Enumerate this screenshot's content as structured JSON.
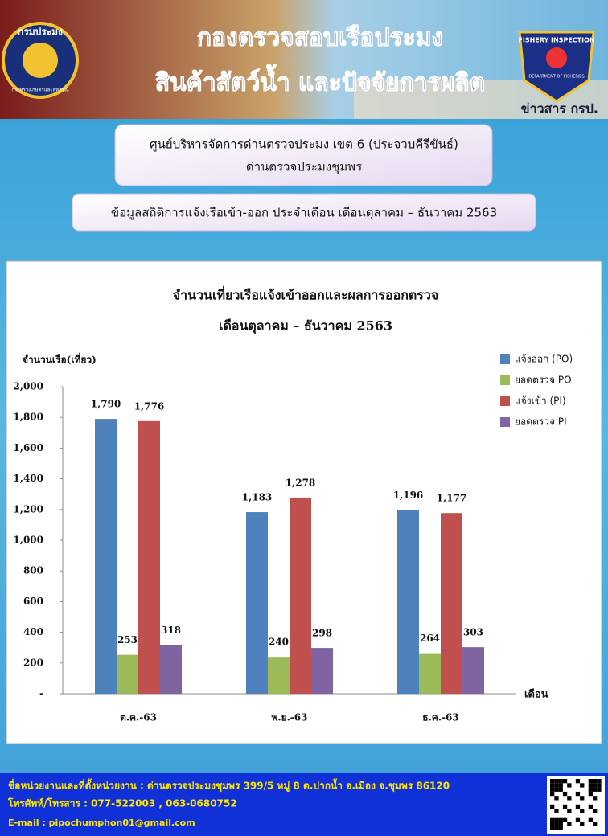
{
  "header": {
    "title_line1": "กองตรวจสอบเรือประมง",
    "title_line2": "สินค้าสัตว์น้ำ และปัจจัยการผลิต",
    "tag": "ข่าวสาร กรป.",
    "logo_left_top": "กรมประมง",
    "logo_left_bottom": "กระทรวงเกษตรและสหกรณ์",
    "logo_right_top": "FISHERY INSPECTION",
    "logo_right_bottom": "DEPARTMENT OF FISHERIES"
  },
  "banner": {
    "line1": "ศูนย์บริหารจัดการด่านตรวจประมง เขต 6 (ประจวบคีรีขันธ์)",
    "line2": "ด่านตรวจประมงชุมพร",
    "subtitle": "ข้อมูลสถิติการแจ้งเรือเข้า-ออก ประจำเดือน เดือนตุลาคม – ธันวาคม 2563"
  },
  "chart_data": {
    "type": "bar",
    "title": "จำนวนเที่ยวเรือแจ้งเข้าออกและผลการออกตรวจ",
    "subtitle": "เดือนตุลาคม – ธันวาคม 2563",
    "y_label": "จำนวนเรือ(เที่ยว)",
    "x_label": "เดือน",
    "categories": [
      "ต.ค.-63",
      "พ.ย.-63",
      "ธ.ค.-63"
    ],
    "series": [
      {
        "name": "แจ้งออก (PO)",
        "color": "#4f81bd",
        "values": [
          1790,
          1183,
          1196
        ],
        "value_labels": [
          "1,790",
          "1,183",
          "1,196"
        ]
      },
      {
        "name": "ยอดตรวจ PO",
        "color": "#9bbb59",
        "values": [
          253,
          240,
          264
        ],
        "value_labels": [
          "253",
          "240",
          "264"
        ]
      },
      {
        "name": "แจ้งเข้า (PI)",
        "color": "#c0504d",
        "values": [
          1776,
          1278,
          1177
        ],
        "value_labels": [
          "1,776",
          "1,278",
          "1,177"
        ]
      },
      {
        "name": "ยอดตรวจ PI",
        "color": "#8064a2",
        "values": [
          318,
          298,
          303
        ],
        "value_labels": [
          "318",
          "298",
          "303"
        ]
      }
    ],
    "ylim": [
      0,
      2000
    ],
    "yticks": [
      {
        "value": 0,
        "label": "-"
      },
      200,
      400,
      600,
      800,
      {
        "value": 1000,
        "label": "1,000"
      },
      {
        "value": 1200,
        "label": "1,200"
      },
      {
        "value": 1400,
        "label": "1,400"
      },
      {
        "value": 1600,
        "label": "1,600"
      },
      {
        "value": 1800,
        "label": "1,800"
      },
      {
        "value": 2000,
        "label": "2,000"
      }
    ],
    "legend": "top-right",
    "grid": false
  },
  "footer": {
    "line1": "ชื่อหน่วยงานและที่ตั้งหน่วยงาน : ด่านตรวจประมงชุมพร 399/5 หมู่ 8 ต.ปากน้ำ อ.เมือง จ.ชุมพร 86120",
    "line2": "โทรศัพท์/โทรสาร : 077-522003 , 063-0680752",
    "line3": "E-mail : pipochumphon01@gmail.com"
  }
}
